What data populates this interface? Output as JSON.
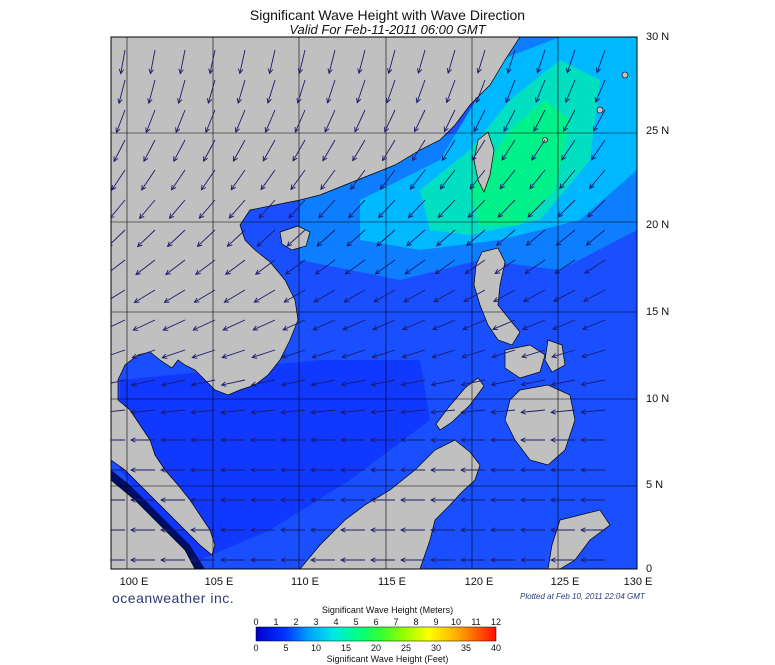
{
  "title": "Significant Wave Height with Wave Direction",
  "subtitle": "Valid For Feb-11-2011 06:00 GMT",
  "lat_labels": [
    "30 N",
    "25 N",
    "20 N",
    "15 N",
    "10 N",
    "5 N",
    "0"
  ],
  "lon_labels": [
    "100 E",
    "105 E",
    "110 E",
    "115 E",
    "120 E",
    "125 E",
    "130 E"
  ],
  "brand": "oceanweather inc.",
  "plotted": "Plotted at Feb 10, 2011 22:04 GMT",
  "colorbar": {
    "top_label": "Significant Wave Height (Meters)",
    "bottom_label": "Significant Wave Height (Feet)",
    "meter_ticks": [
      "0",
      "1",
      "2",
      "3",
      "4",
      "5",
      "6",
      "7",
      "8",
      "9",
      "10",
      "11",
      "12"
    ],
    "feet_ticks": [
      "0",
      "5",
      "10",
      "15",
      "20",
      "25",
      "30",
      "35",
      "40"
    ],
    "colors": [
      "#0000cc",
      "#0033ff",
      "#0077ff",
      "#00b8ff",
      "#00e6e6",
      "#00ff99",
      "#33ff33",
      "#99ff00",
      "#ccff00",
      "#ffff00",
      "#ffcc00",
      "#ff8800",
      "#ff2200"
    ]
  },
  "colors": {
    "land": "#c0c0c0",
    "deep_water": "#1a4fff",
    "medium_water": "#0d7eff",
    "high_water": "#00e0b0",
    "arrow": "#1b1b6a"
  }
}
